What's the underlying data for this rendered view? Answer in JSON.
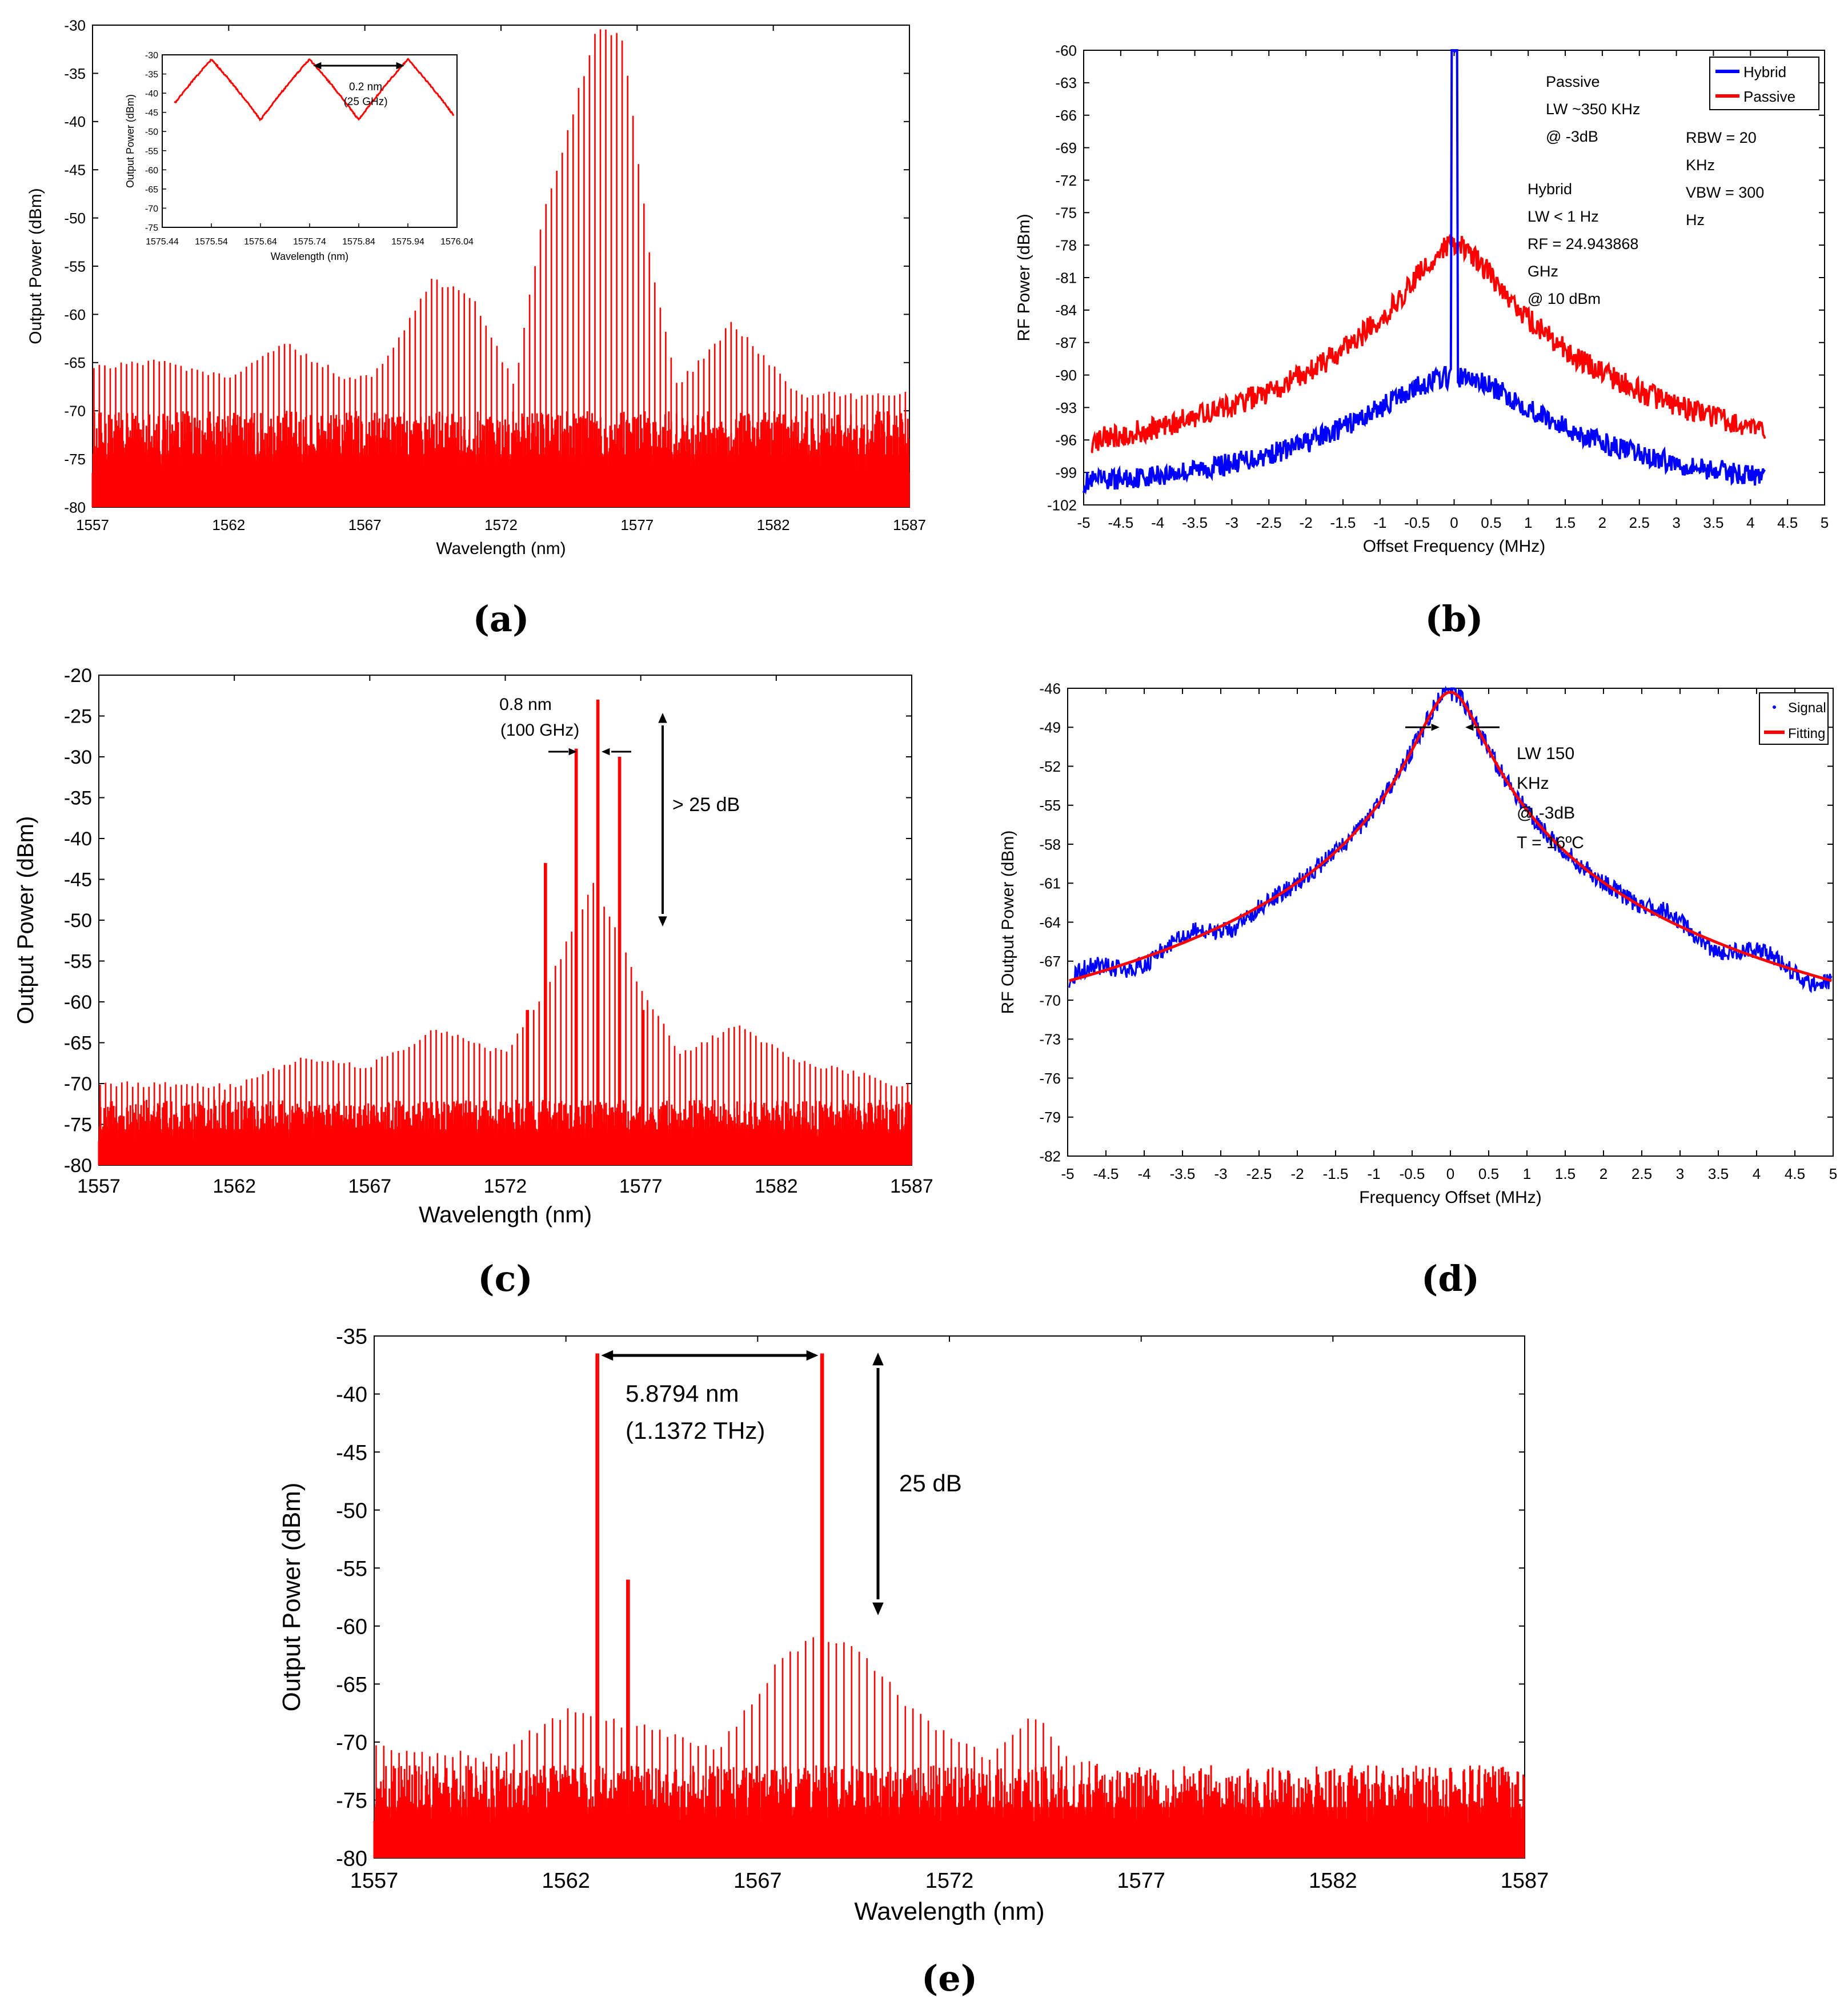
{
  "colors": {
    "signal_red": "#ff0000",
    "hybrid_blue": "#0000ff",
    "axis": "#000000"
  },
  "chart_data": [
    {
      "id": "a",
      "caption": "(a)",
      "type": "line",
      "xlabel": "Wavelength (nm)",
      "ylabel": "Output Power (dBm)",
      "xlim": [
        1557,
        1587
      ],
      "ylim": [
        -80,
        -30
      ],
      "xticks": [
        1557,
        1562,
        1567,
        1572,
        1577,
        1582,
        1587
      ],
      "yticks": [
        -80,
        -75,
        -70,
        -65,
        -60,
        -55,
        -50,
        -45,
        -40,
        -35,
        -30
      ],
      "line_spacing_nm": 0.2,
      "noise_floor_dbm": [
        -80,
        -70
      ],
      "envelope": [
        [
          1557,
          -65
        ],
        [
          1559,
          -64.5
        ],
        [
          1562,
          -66
        ],
        [
          1564,
          -62.5
        ],
        [
          1566.5,
          -66.5
        ],
        [
          1567.5,
          -65.5
        ],
        [
          1569.5,
          -56
        ],
        [
          1571,
          -58
        ],
        [
          1572.5,
          -67
        ],
        [
          1573.5,
          -50
        ],
        [
          1575.5,
          -30
        ],
        [
          1576.5,
          -31
        ],
        [
          1577.5,
          -54
        ],
        [
          1578.5,
          -67
        ],
        [
          1580.5,
          -60.5
        ],
        [
          1582,
          -65
        ],
        [
          1583,
          -68
        ],
        [
          1587,
          -68
        ]
      ],
      "inset": {
        "xlabel": "Wavelength (nm)",
        "ylabel": "Output Power (dBm)",
        "xlim": [
          1575.44,
          1576.04
        ],
        "ylim": [
          -75,
          -30
        ],
        "xticks": [
          "1575.44",
          "1575.54",
          "1575.64",
          "1575.74",
          "1575.84",
          "1575.94",
          "1576.04"
        ],
        "yticks": [
          -30,
          -35,
          -40,
          -45,
          -50,
          -55,
          -60,
          -65,
          -70,
          -75
        ],
        "peaks_nm": [
          1575.54,
          1575.74,
          1575.94
        ],
        "peak_dbm": -31,
        "annotation": [
          "0.2 nm",
          "(25 GHz)"
        ]
      }
    },
    {
      "id": "b",
      "caption": "(b)",
      "type": "line",
      "xlabel": "Offset Frequency (MHz)",
      "ylabel": "RF Power (dBm)",
      "xlim": [
        -5,
        5
      ],
      "ylim": [
        -102,
        -60
      ],
      "xticks": [
        "-5",
        "-4.5",
        "-4",
        "-3.5",
        "-3",
        "-2.5",
        "-2",
        "-1.5",
        "-1",
        "-0.5",
        "0",
        "0.5",
        "1",
        "1.5",
        "2",
        "2.5",
        "3",
        "3.5",
        "4",
        "4.5",
        "5"
      ],
      "yticks": [
        -60,
        -63,
        -66,
        -69,
        -72,
        -75,
        -78,
        -81,
        -84,
        -87,
        -90,
        -93,
        -96,
        -99,
        -102
      ],
      "series": [
        {
          "name": "Hybrid",
          "color": "#0000ff",
          "peak_dbm": -61,
          "pedestal_dbm": -90.5,
          "floor_dbm": -101.5,
          "width_mhz": 1.6,
          "x_range": [
            -5,
            4.2
          ]
        },
        {
          "name": "Passive",
          "color": "#ff0000",
          "peak_dbm": -78,
          "floor_dbm": -101,
          "width_mhz": 0.85,
          "x_range": [
            -4.9,
            4.2
          ]
        }
      ],
      "annotations": {
        "passive": [
          "Passive",
          "LW ~350 KHz",
          "@ -3dB"
        ],
        "hybrid": [
          "Hybrid",
          "LW < 1 Hz",
          "RF = 24.943868",
          "GHz",
          "@ 10 dBm"
        ],
        "settings": [
          "RBW = 20",
          "KHz",
          "VBW = 300",
          "Hz"
        ]
      }
    },
    {
      "id": "c",
      "caption": "(c)",
      "type": "line",
      "xlabel": "Wavelength (nm)",
      "ylabel": "Output Power (dBm)",
      "xlim": [
        1557,
        1587
      ],
      "ylim": [
        -80,
        -20
      ],
      "xticks": [
        1557,
        1562,
        1567,
        1572,
        1577,
        1582,
        1587
      ],
      "yticks": [
        -80,
        -75,
        -70,
        -65,
        -60,
        -55,
        -50,
        -45,
        -40,
        -35,
        -30,
        -25,
        -20
      ],
      "line_spacing_nm": 0.2,
      "noise_floor_dbm": [
        -80,
        -72
      ],
      "envelope": [
        [
          1557,
          -69.5
        ],
        [
          1562,
          -70
        ],
        [
          1564.5,
          -66.5
        ],
        [
          1567,
          -67.5
        ],
        [
          1569.5,
          -63
        ],
        [
          1572,
          -66
        ],
        [
          1573.5,
          -58
        ],
        [
          1575.3,
          -45
        ],
        [
          1577,
          -58
        ],
        [
          1578.5,
          -66
        ],
        [
          1580.5,
          -62.5
        ],
        [
          1583,
          -67
        ],
        [
          1587,
          -70
        ]
      ],
      "peaks": [
        [
          1573.5,
          -43
        ],
        [
          1574.6,
          -29
        ],
        [
          1575.4,
          -23
        ],
        [
          1576.2,
          -30
        ],
        [
          1572.8,
          -61
        ],
        [
          1577.1,
          -61
        ]
      ],
      "annotations": {
        "spacing": [
          "0.8 nm",
          "(100 GHz)"
        ],
        "extinction": "> 25 dB"
      }
    },
    {
      "id": "d",
      "caption": "(d)",
      "type": "line",
      "xlabel": "Frequency Offset (MHz)",
      "ylabel": "RF Output Power (dBm)",
      "xlim": [
        -5,
        5
      ],
      "ylim": [
        -82,
        -46
      ],
      "xticks": [
        "-5",
        "-4.5",
        "-4",
        "-3.5",
        "-3",
        "-2.5",
        "-2",
        "-1.5",
        "-1",
        "-0.5",
        "0",
        "0.5",
        "1",
        "1.5",
        "2",
        "2.5",
        "3",
        "3.5",
        "4",
        "4.5",
        "5"
      ],
      "yticks": [
        -46,
        -49,
        -52,
        -55,
        -58,
        -61,
        -64,
        -67,
        -70,
        -73,
        -76,
        -79,
        -82
      ],
      "series": [
        {
          "name": "Signal",
          "color": "#0000ff",
          "peak_dbm": -46.3,
          "floor_dbm": -80.5,
          "width_mhz": 0.75
        },
        {
          "name": "Fitting",
          "color": "#ff0000",
          "peak_dbm": -46.3,
          "floor_dbm": -80.5,
          "width_mhz": 0.75
        }
      ],
      "annotation": [
        "LW 150",
        "KHz",
        "@ -3dB",
        "T = 16ºC"
      ]
    },
    {
      "id": "e",
      "caption": "(e)",
      "type": "line",
      "xlabel": "Wavelength (nm)",
      "ylabel": "Output Power (dBm)",
      "xlim": [
        1557,
        1587
      ],
      "ylim": [
        -80,
        -35
      ],
      "xticks": [
        1557,
        1562,
        1567,
        1572,
        1577,
        1582,
        1587
      ],
      "yticks": [
        -80,
        -75,
        -70,
        -65,
        -60,
        -55,
        -50,
        -45,
        -40,
        -35
      ],
      "line_spacing_nm": 0.2,
      "noise_floor_dbm": [
        -80,
        -72
      ],
      "envelope": [
        [
          1557,
          -70
        ],
        [
          1560,
          -71
        ],
        [
          1562,
          -67
        ],
        [
          1563.5,
          -68
        ],
        [
          1566,
          -70
        ],
        [
          1567.5,
          -63
        ],
        [
          1568.5,
          -60.5
        ],
        [
          1569.5,
          -61
        ],
        [
          1571,
          -67
        ],
        [
          1573,
          -71
        ],
        [
          1574.2,
          -67
        ],
        [
          1575,
          -71
        ],
        [
          1577,
          -73
        ],
        [
          1587,
          -78
        ]
      ],
      "peaks": [
        [
          1562.8,
          -36.5
        ],
        [
          1563.6,
          -56
        ],
        [
          1568.7,
          -36.5
        ]
      ],
      "annotations": {
        "spacing": [
          "5.8794 nm",
          "(1.1372 THz)"
        ],
        "extinction": "25 dB"
      }
    }
  ]
}
